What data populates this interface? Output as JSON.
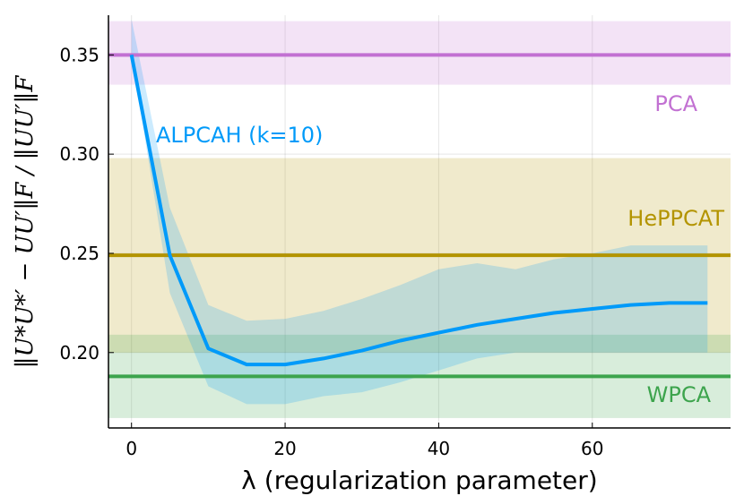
{
  "chart_data": {
    "type": "line",
    "xlabel": "λ (regularization parameter)",
    "ylabel": "‖U*U*′ − UU′‖F / ‖UU′‖F",
    "xlim": [
      -3,
      78
    ],
    "ylim": [
      0.162,
      0.37
    ],
    "xticks": [
      0,
      20,
      40,
      60
    ],
    "yticks": [
      0.2,
      0.25,
      0.3,
      0.35
    ],
    "xtick_labels": [
      "0",
      "20",
      "40",
      "60"
    ],
    "ytick_labels": [
      "0.20",
      "0.25",
      "0.30",
      "0.35"
    ],
    "grid": true,
    "series": [
      {
        "name": "ALPCAH (k=10)",
        "color": "#009af9",
        "x": [
          0,
          5,
          10,
          15,
          20,
          25,
          30,
          35,
          40,
          45,
          50,
          55,
          60,
          65,
          70,
          75
        ],
        "values": [
          0.35,
          0.249,
          0.202,
          0.194,
          0.194,
          0.197,
          0.201,
          0.206,
          0.21,
          0.214,
          0.217,
          0.22,
          0.222,
          0.224,
          0.225,
          0.225
        ],
        "band_upper": [
          0.368,
          0.273,
          0.224,
          0.216,
          0.217,
          0.221,
          0.227,
          0.234,
          0.242,
          0.245,
          0.242,
          0.247,
          0.25,
          0.254,
          0.254,
          0.254
        ],
        "band_lower": [
          0.35,
          0.23,
          0.183,
          0.174,
          0.174,
          0.178,
          0.18,
          0.185,
          0.191,
          0.197,
          0.2,
          0.2,
          0.2,
          0.2,
          0.2,
          0.2
        ]
      },
      {
        "name": "PCA",
        "color": "#c271d2",
        "value": 0.35,
        "band": [
          0.335,
          0.367
        ]
      },
      {
        "name": "HePPCAT",
        "color": "#b39400",
        "value": 0.249,
        "band": [
          0.2,
          0.298
        ]
      },
      {
        "name": "WPCA",
        "color": "#3da44d",
        "value": 0.188,
        "band": [
          0.167,
          0.209
        ]
      }
    ]
  }
}
